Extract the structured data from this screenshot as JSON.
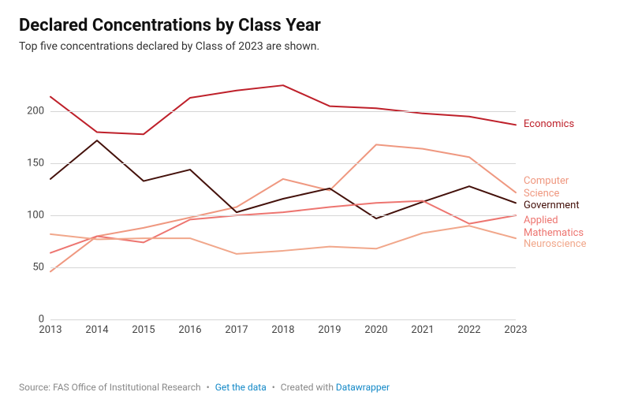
{
  "title": "Declared Concentrations by Class Year",
  "subtitle": "Top five concentrations declared by Class of 2023 are shown.",
  "chart": {
    "type": "line",
    "background_color": "#ffffff",
    "grid_color": "#d6d6d6",
    "title_fontsize": 22,
    "subtitle_fontsize": 14,
    "label_fontsize": 13,
    "tick_fontsize": 13,
    "line_width": 2,
    "x": {
      "categories": [
        "2013",
        "2014",
        "2015",
        "2016",
        "2017",
        "2018",
        "2019",
        "2020",
        "2021",
        "2022",
        "2023"
      ]
    },
    "y": {
      "min": 0,
      "max": 235,
      "ticks": [
        0,
        50,
        100,
        150,
        200
      ],
      "tick_labels": [
        "0",
        "50",
        "100",
        "150",
        "200"
      ]
    },
    "series": [
      {
        "name": "Economics",
        "color": "#be202a",
        "values": [
          214,
          180,
          178,
          213,
          220,
          225,
          205,
          203,
          198,
          195,
          187
        ],
        "label_offset_y": 0
      },
      {
        "name": "Computer\nScience",
        "color": "#ef9880",
        "values": [
          46,
          80,
          88,
          98,
          108,
          135,
          124,
          168,
          164,
          156,
          122
        ],
        "label_offset_y": -14
      },
      {
        "name": "Government",
        "color": "#44110b",
        "values": [
          135,
          172,
          133,
          144,
          103,
          116,
          126,
          97,
          113,
          128,
          112
        ],
        "label_offset_y": 4
      },
      {
        "name": "Applied\nMathematics",
        "color": "#ed7570",
        "values": [
          64,
          80,
          74,
          96,
          100,
          103,
          108,
          112,
          114,
          92,
          100
        ],
        "label_offset_y": 7
      },
      {
        "name": "Neuroscience",
        "color": "#f1a78b",
        "values": [
          82,
          77,
          78,
          78,
          63,
          66,
          70,
          68,
          83,
          90,
          78
        ],
        "label_offset_y": 8
      }
    ]
  },
  "footer": {
    "source_prefix": "Source: ",
    "source": "FAS Office of Institutional Research",
    "link1": "Get the data",
    "created_prefix": "Created with ",
    "link2": "Datawrapper"
  }
}
